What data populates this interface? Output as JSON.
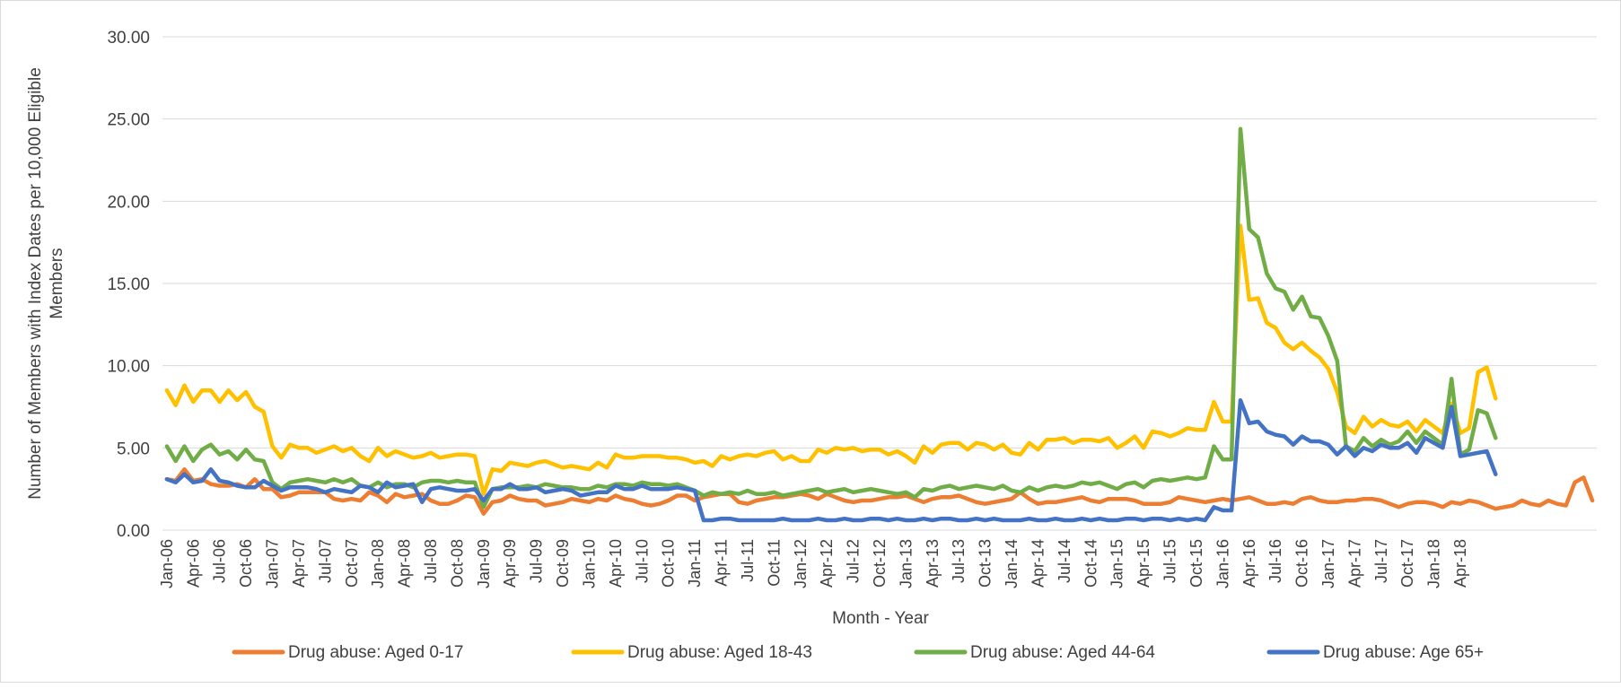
{
  "chart_data": {
    "type": "line",
    "title": "",
    "xlabel": "Month - Year",
    "ylabel": "Number of Members with Index Dates per 10,000 Eligible Members",
    "ylim": [
      0,
      30
    ],
    "yticks": [
      "0.00",
      "5.00",
      "10.00",
      "15.00",
      "20.00",
      "25.00",
      "30.00"
    ],
    "grid": true,
    "legend_position": "bottom",
    "x_tick_labels": [
      "Jan-06",
      "Apr-06",
      "Jul-06",
      "Oct-06",
      "Jan-07",
      "Apr-07",
      "Jul-07",
      "Oct-07",
      "Jan-08",
      "Apr-08",
      "Jul-08",
      "Oct-08",
      "Jan-09",
      "Apr-09",
      "Jul-09",
      "Oct-09",
      "Jan-10",
      "Apr-10",
      "Jul-10",
      "Oct-10",
      "Jan-11",
      "Apr-11",
      "Jul-11",
      "Oct-11",
      "Jan-12",
      "Apr-12",
      "Jul-12",
      "Oct-12",
      "Jan-13",
      "Apr-13",
      "Jul-13",
      "Oct-13",
      "Jan-14",
      "Apr-14",
      "Jul-14",
      "Oct-14",
      "Jan-15",
      "Apr-15",
      "Jul-15",
      "Oct-15",
      "Jan-16",
      "Apr-16",
      "Jul-16",
      "Oct-16",
      "Jan-17",
      "Apr-17",
      "Jul-17",
      "Oct-17",
      "Jan-18",
      "Apr-18"
    ],
    "x_start": "Jan-06",
    "x_end": "Jun-18",
    "series": [
      {
        "name": "Drug abuse: Aged 0-17",
        "color": "#ED7D31",
        "values": [
          3.1,
          3.0,
          3.7,
          3.0,
          3.1,
          2.8,
          2.7,
          2.7,
          2.8,
          2.6,
          3.1,
          2.5,
          2.5,
          2.0,
          2.1,
          2.3,
          2.3,
          2.3,
          2.3,
          1.9,
          1.8,
          1.9,
          1.8,
          2.3,
          2.1,
          1.7,
          2.2,
          2.0,
          2.1,
          2.2,
          1.8,
          1.6,
          1.6,
          1.8,
          2.1,
          2.0,
          1.0,
          1.7,
          1.8,
          2.1,
          1.9,
          1.8,
          1.8,
          1.5,
          1.6,
          1.7,
          1.9,
          1.8,
          1.7,
          1.9,
          1.8,
          2.1,
          1.9,
          1.8,
          1.6,
          1.5,
          1.6,
          1.8,
          2.1,
          2.1,
          1.8,
          2.0,
          2.1,
          2.2,
          2.2,
          1.7,
          1.6,
          1.8,
          1.9,
          2.0,
          2.0,
          2.1,
          2.2,
          2.1,
          1.9,
          2.2,
          2.0,
          1.8,
          1.7,
          1.8,
          1.8,
          1.9,
          2.0,
          2.0,
          2.1,
          1.9,
          1.7,
          1.9,
          2.0,
          2.0,
          2.1,
          1.9,
          1.7,
          1.6,
          1.7,
          1.8,
          1.9,
          2.3,
          1.9,
          1.6,
          1.7,
          1.7,
          1.8,
          1.9,
          2.0,
          1.8,
          1.7,
          1.9,
          1.9,
          1.9,
          1.8,
          1.6,
          1.6,
          1.6,
          1.7,
          2.0,
          1.9,
          1.8,
          1.7,
          1.8,
          1.9,
          1.8,
          1.9,
          2.0,
          1.8,
          1.6,
          1.6,
          1.7,
          1.6,
          1.9,
          2.0,
          1.8,
          1.7,
          1.7,
          1.8,
          1.8,
          1.9,
          1.9,
          1.8,
          1.6,
          1.4,
          1.6,
          1.7,
          1.7,
          1.6,
          1.4,
          1.7,
          1.6,
          1.8,
          1.7,
          1.5,
          1.3,
          1.4,
          1.5,
          1.8,
          1.6,
          1.5,
          1.8,
          1.6,
          1.5,
          2.9,
          3.2,
          1.8
        ]
      },
      {
        "name": "Drug abuse: Aged 18-43",
        "color": "#FFC000",
        "values": [
          8.5,
          7.6,
          8.8,
          7.8,
          8.5,
          8.5,
          7.8,
          8.5,
          7.9,
          8.4,
          7.5,
          7.2,
          5.1,
          4.4,
          5.2,
          5.0,
          5.0,
          4.7,
          4.9,
          5.1,
          4.8,
          5.0,
          4.5,
          4.2,
          5.0,
          4.5,
          4.8,
          4.6,
          4.4,
          4.5,
          4.7,
          4.4,
          4.5,
          4.6,
          4.6,
          4.5,
          2.2,
          3.7,
          3.6,
          4.1,
          4.0,
          3.9,
          4.1,
          4.2,
          4.0,
          3.8,
          3.9,
          3.8,
          3.7,
          4.1,
          3.8,
          4.6,
          4.4,
          4.4,
          4.5,
          4.5,
          4.5,
          4.4,
          4.4,
          4.3,
          4.1,
          4.2,
          3.9,
          4.5,
          4.3,
          4.5,
          4.6,
          4.5,
          4.7,
          4.8,
          4.3,
          4.5,
          4.2,
          4.2,
          4.9,
          4.7,
          5.0,
          4.9,
          5.0,
          4.8,
          4.9,
          4.9,
          4.6,
          4.8,
          4.5,
          4.1,
          5.1,
          4.7,
          5.2,
          5.3,
          5.3,
          4.9,
          5.3,
          5.2,
          4.9,
          5.2,
          4.7,
          4.6,
          5.3,
          4.9,
          5.5,
          5.5,
          5.6,
          5.3,
          5.5,
          5.5,
          5.4,
          5.6,
          5.0,
          5.3,
          5.7,
          5.0,
          6.0,
          5.9,
          5.7,
          5.9,
          6.2,
          6.1,
          6.1,
          7.8,
          6.6,
          6.6,
          18.5,
          14.0,
          14.1,
          12.6,
          12.3,
          11.4,
          11.0,
          11.4,
          10.9,
          10.5,
          9.8,
          8.4,
          6.3,
          5.9,
          6.9,
          6.3,
          6.7,
          6.4,
          6.3,
          6.6,
          6.0,
          6.7,
          6.3,
          5.9,
          7.7,
          5.9,
          6.2,
          9.6,
          9.9,
          8.0
        ]
      },
      {
        "name": "Drug abuse: Aged 44-64",
        "color": "#70AD47",
        "values": [
          5.1,
          4.2,
          5.1,
          4.2,
          4.9,
          5.2,
          4.6,
          4.8,
          4.3,
          4.9,
          4.3,
          4.2,
          2.9,
          2.5,
          2.9,
          3.0,
          3.1,
          3.0,
          2.9,
          3.1,
          2.9,
          3.1,
          2.7,
          2.6,
          2.9,
          2.6,
          2.8,
          2.8,
          2.6,
          2.9,
          3.0,
          3.0,
          2.9,
          3.0,
          2.9,
          2.9,
          1.4,
          2.5,
          2.6,
          2.6,
          2.6,
          2.7,
          2.6,
          2.8,
          2.7,
          2.6,
          2.6,
          2.5,
          2.5,
          2.7,
          2.6,
          2.8,
          2.8,
          2.7,
          2.9,
          2.8,
          2.8,
          2.7,
          2.8,
          2.6,
          2.4,
          2.1,
          2.3,
          2.2,
          2.3,
          2.2,
          2.4,
          2.2,
          2.2,
          2.3,
          2.1,
          2.2,
          2.3,
          2.4,
          2.5,
          2.3,
          2.4,
          2.5,
          2.3,
          2.4,
          2.5,
          2.4,
          2.3,
          2.2,
          2.3,
          2.0,
          2.5,
          2.4,
          2.6,
          2.7,
          2.5,
          2.6,
          2.7,
          2.6,
          2.5,
          2.7,
          2.4,
          2.3,
          2.6,
          2.4,
          2.6,
          2.7,
          2.6,
          2.7,
          2.9,
          2.8,
          2.9,
          2.7,
          2.5,
          2.8,
          2.9,
          2.6,
          3.0,
          3.1,
          3.0,
          3.1,
          3.2,
          3.1,
          3.2,
          5.1,
          4.3,
          4.3,
          24.4,
          18.3,
          17.8,
          15.6,
          14.7,
          14.5,
          13.4,
          14.2,
          13.0,
          12.9,
          11.8,
          10.3,
          5.1,
          4.8,
          5.6,
          5.1,
          5.5,
          5.2,
          5.4,
          6.0,
          5.3,
          6.0,
          5.6,
          5.2,
          9.2,
          4.6,
          4.9,
          7.3,
          7.1,
          5.6
        ]
      },
      {
        "name": "Drug abuse: Age 65+",
        "color": "#4472C4",
        "values": [
          3.1,
          2.9,
          3.4,
          2.9,
          3.0,
          3.7,
          3.0,
          2.9,
          2.7,
          2.6,
          2.6,
          3.0,
          2.7,
          2.4,
          2.6,
          2.6,
          2.6,
          2.5,
          2.3,
          2.5,
          2.4,
          2.3,
          2.7,
          2.6,
          2.3,
          2.9,
          2.6,
          2.7,
          2.8,
          1.7,
          2.5,
          2.6,
          2.5,
          2.4,
          2.4,
          2.5,
          1.8,
          2.5,
          2.5,
          2.8,
          2.5,
          2.5,
          2.6,
          2.3,
          2.4,
          2.5,
          2.4,
          2.1,
          2.2,
          2.3,
          2.3,
          2.7,
          2.5,
          2.5,
          2.7,
          2.5,
          2.5,
          2.5,
          2.6,
          2.5,
          2.4,
          0.6,
          0.6,
          0.7,
          0.7,
          0.6,
          0.6,
          0.6,
          0.6,
          0.6,
          0.7,
          0.6,
          0.6,
          0.6,
          0.7,
          0.6,
          0.6,
          0.7,
          0.6,
          0.6,
          0.7,
          0.7,
          0.6,
          0.7,
          0.6,
          0.6,
          0.7,
          0.6,
          0.7,
          0.7,
          0.6,
          0.6,
          0.7,
          0.6,
          0.7,
          0.6,
          0.6,
          0.6,
          0.7,
          0.6,
          0.6,
          0.7,
          0.6,
          0.6,
          0.7,
          0.6,
          0.7,
          0.6,
          0.6,
          0.7,
          0.7,
          0.6,
          0.7,
          0.7,
          0.6,
          0.7,
          0.6,
          0.7,
          0.6,
          1.4,
          1.2,
          1.2,
          7.9,
          6.5,
          6.6,
          6.0,
          5.8,
          5.7,
          5.2,
          5.7,
          5.4,
          5.4,
          5.2,
          4.6,
          5.1,
          4.5,
          5.0,
          4.8,
          5.2,
          5.0,
          5.0,
          5.3,
          4.7,
          5.6,
          5.3,
          5.0,
          7.5,
          4.5,
          4.6,
          4.7,
          4.8,
          3.4
        ]
      }
    ]
  }
}
